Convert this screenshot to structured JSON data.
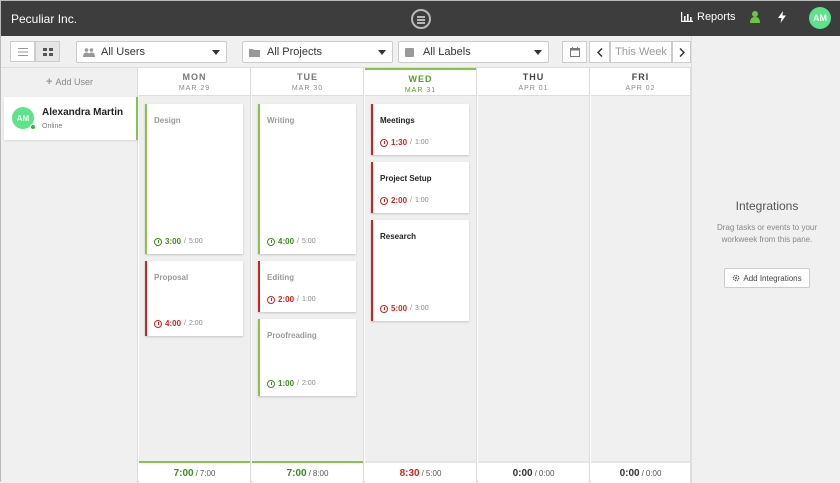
{
  "header": {
    "brand": "Peculiar Inc.",
    "reports_label": "Reports",
    "avatar_initials": "AM",
    "accent_color": "#8ac34a",
    "icons": [
      "logo-icon",
      "bar-chart-icon",
      "user-icon",
      "bolt-icon"
    ]
  },
  "filters": {
    "users": "All Users",
    "projects": "All Projects",
    "labels": "All Labels",
    "week": "This Week"
  },
  "sidebar": {
    "add_user": "Add User",
    "user": {
      "initials": "AM",
      "name": "Alexandra Martin",
      "status": "Online"
    }
  },
  "days": [
    {
      "name": "MON",
      "date": "MAR 29",
      "total_spent": "7:00",
      "total_est": "7:00",
      "tasks": [
        {
          "title": "Design",
          "spent": "3:00",
          "est": "5:00"
        },
        {
          "title": "Proposal",
          "spent": "4:00",
          "est": "2:00"
        }
      ]
    },
    {
      "name": "TUE",
      "date": "MAR 30",
      "total_spent": "7:00",
      "total_est": "8:00",
      "tasks": [
        {
          "title": "Writing",
          "spent": "4:00",
          "est": "5:00"
        },
        {
          "title": "Editing",
          "spent": "2:00",
          "est": "1:00"
        },
        {
          "title": "Proofreading",
          "spent": "1:00",
          "est": "2:00"
        }
      ]
    },
    {
      "name": "WED",
      "date": "MAR 31",
      "total_spent": "8:30",
      "total_est": "5:00",
      "tasks": [
        {
          "title": "Meetings",
          "spent": "1:30",
          "est": "1:00"
        },
        {
          "title": "Project Setup",
          "spent": "2:00",
          "est": "1:00"
        },
        {
          "title": "Research",
          "spent": "5:00",
          "est": "3:00"
        }
      ]
    },
    {
      "name": "THU",
      "date": "APR 01",
      "total_spent": "0:00",
      "total_est": "0:00",
      "tasks": []
    },
    {
      "name": "FRI",
      "date": "APR 02",
      "total_spent": "0:00",
      "total_est": "0:00",
      "tasks": []
    }
  ],
  "integrations": {
    "title": "Integrations",
    "description": "Drag tasks or events to your workweek from this pane.",
    "button": "Add Integrations"
  }
}
